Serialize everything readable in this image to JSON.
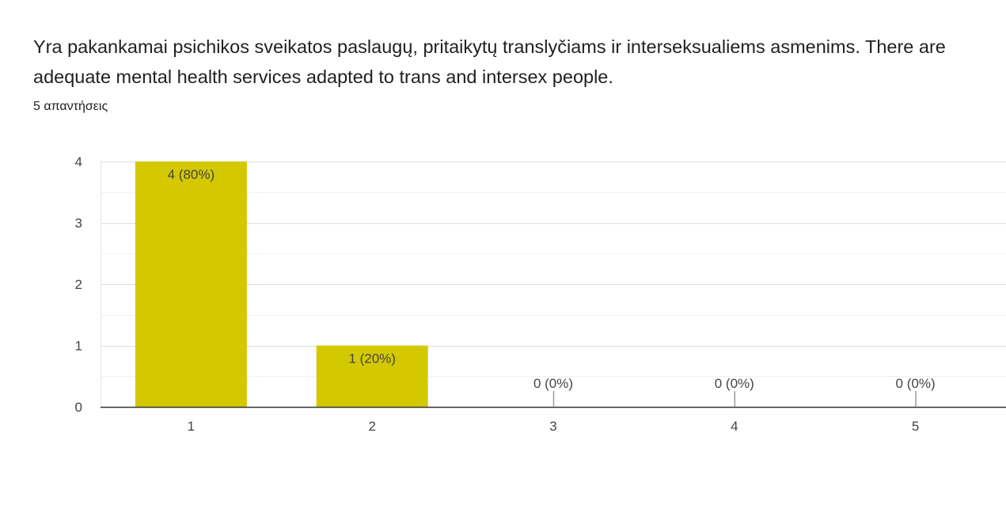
{
  "question": {
    "title": "Yra pakankamai psichikos sveikatos paslaugų, pritaikytų translyčiams ir interseksualiems asmenims.   There are adequate mental health services adapted to trans and intersex people.",
    "response_count": "5 απαντήσεις"
  },
  "colors": {
    "bar": "#d4c900",
    "axis": "#333333",
    "grid": "#e8e8e8",
    "text": "#444444"
  },
  "chart_data": {
    "type": "bar",
    "categories": [
      "1",
      "2",
      "3",
      "4",
      "5"
    ],
    "values": [
      4,
      1,
      0,
      0,
      0
    ],
    "data_labels": [
      "4 (80%)",
      "1 (20%)",
      "0 (0%)",
      "0 (0%)",
      "0 (0%)"
    ],
    "yticks": [
      "0",
      "1",
      "2",
      "3",
      "4"
    ],
    "ylim": [
      0,
      4
    ],
    "xlabel": "",
    "ylabel": "",
    "grid": true,
    "minor_grid": true,
    "legend": "none"
  }
}
